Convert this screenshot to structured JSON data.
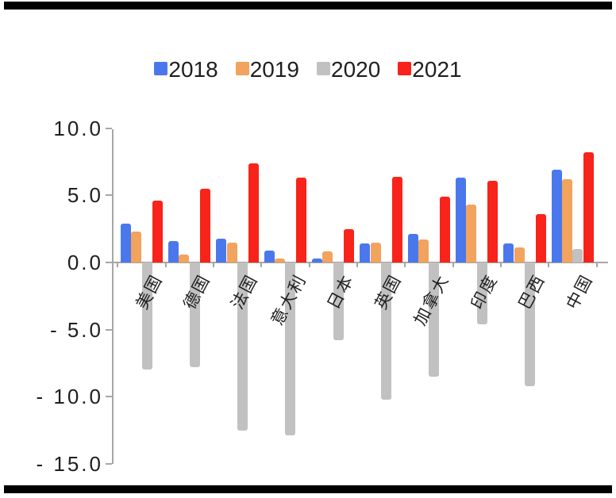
{
  "page": {
    "background_color": "#ffffff",
    "top_strip_color": "#000000",
    "bottom_strip_color": "#000000"
  },
  "legend": {
    "position": "top-center",
    "items": [
      {
        "label": "2018",
        "color": "#4a78ec"
      },
      {
        "label": "2019",
        "color": "#f2a35d"
      },
      {
        "label": "2020",
        "color": "#c1c1c1"
      },
      {
        "label": "2021",
        "color": "#f8231a"
      }
    ]
  },
  "axis": {
    "line_color": "#a6a6a6",
    "text_color": "#1f1f1f",
    "yticks": [
      {
        "value": 10,
        "label": "10.0"
      },
      {
        "value": 5,
        "label": "5.0"
      },
      {
        "value": 0,
        "label": "0.0"
      },
      {
        "value": -5,
        "label": "- 5.0"
      },
      {
        "value": -10,
        "label": "- 10.0"
      },
      {
        "value": -15,
        "label": "- 15.0"
      }
    ]
  },
  "chart_data": {
    "type": "bar",
    "title": "",
    "xlabel": "",
    "ylabel": "",
    "grid": false,
    "legend_position": "top",
    "ylim": [
      -15,
      10
    ],
    "categories": [
      "美国",
      "德国",
      "法国",
      "意大利",
      "日本",
      "英国",
      "加拿大",
      "印度",
      "巴西",
      "中国"
    ],
    "series": [
      {
        "name": "2018",
        "color": "#4a78ec",
        "values": [
          2.9,
          1.6,
          1.8,
          0.9,
          0.3,
          1.4,
          2.1,
          6.3,
          1.4,
          6.9
        ]
      },
      {
        "name": "2019",
        "color": "#f2a35d",
        "values": [
          2.3,
          0.6,
          1.5,
          0.3,
          0.8,
          1.5,
          1.7,
          4.3,
          1.1,
          6.2
        ]
      },
      {
        "name": "2020",
        "color": "#c1c1c1",
        "values": [
          -8.0,
          -7.8,
          -12.5,
          -12.9,
          -5.8,
          -10.2,
          -8.5,
          -4.6,
          -9.2,
          1.0
        ]
      },
      {
        "name": "2021",
        "color": "#f8231a",
        "values": [
          4.6,
          5.5,
          7.4,
          6.3,
          2.5,
          6.4,
          4.9,
          6.1,
          3.6,
          8.2
        ]
      }
    ]
  }
}
